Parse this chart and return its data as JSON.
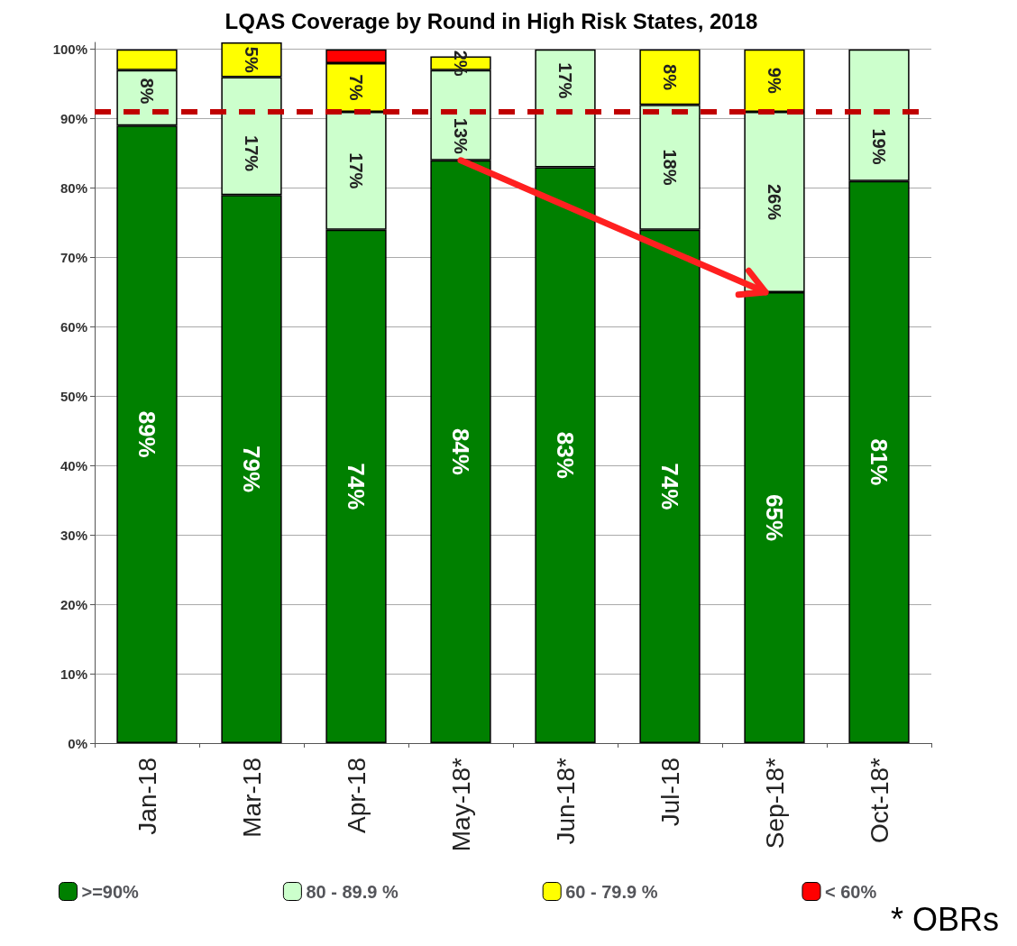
{
  "chart_data": {
    "type": "bar",
    "title": "LQAS Coverage by Round in High Risk States, 2018",
    "stacked": true,
    "categories": [
      "Jan-18",
      "Mar-18",
      "Apr-18",
      "May-18*",
      "Jun-18*",
      "Jul-18",
      "Sep-18*",
      "Oct-18*"
    ],
    "series": [
      {
        "name": ">=90%",
        "color": "#008000",
        "values": [
          89,
          79,
          74,
          84,
          83,
          74,
          65,
          81
        ],
        "value_labels": [
          "89%",
          "79%",
          "74%",
          "84%",
          "83%",
          "74%",
          "65%",
          "81%"
        ]
      },
      {
        "name": "80 - 89.9 %",
        "color": "#ccffcc",
        "values": [
          8,
          17,
          17,
          13,
          17,
          18,
          26,
          19
        ],
        "value_labels": [
          "8%",
          "17%",
          "17%",
          "13%",
          "17%",
          "18%",
          "26%",
          "19%"
        ]
      },
      {
        "name": "60 - 79.9 %",
        "color": "#ffff00",
        "values": [
          3,
          5,
          7,
          2,
          null,
          8,
          9,
          null
        ],
        "value_labels": [
          null,
          "5%",
          "7%",
          "2%",
          null,
          "8%",
          "9%",
          null
        ]
      },
      {
        "name": "< 60%",
        "color": "#ff0000",
        "values": [
          null,
          null,
          2,
          null,
          null,
          null,
          null,
          null
        ],
        "value_labels": [
          null,
          null,
          null,
          null,
          null,
          null,
          null,
          null
        ]
      }
    ],
    "ylim": [
      0,
      101
    ],
    "yticks": [
      {
        "value": 0,
        "label": "0%"
      },
      {
        "value": 10,
        "label": "10%"
      },
      {
        "value": 20,
        "label": "20%"
      },
      {
        "value": 30,
        "label": "30%"
      },
      {
        "value": 40,
        "label": "40%"
      },
      {
        "value": 50,
        "label": "50%"
      },
      {
        "value": 60,
        "label": "60%"
      },
      {
        "value": 70,
        "label": "70%"
      },
      {
        "value": 80,
        "label": "80%"
      },
      {
        "value": 90,
        "label": "90%"
      },
      {
        "value": 100,
        "label": "100%"
      }
    ],
    "grid": "y",
    "legend": "bottom",
    "ref_lines": [
      {
        "axis": "y",
        "value": 91,
        "color": "#c00000",
        "line_style": "dashed"
      }
    ],
    "annotations": [
      "* OBRs"
    ]
  }
}
